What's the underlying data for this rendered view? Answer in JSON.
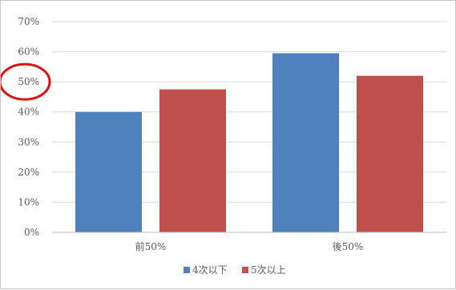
{
  "chart_data": {
    "type": "bar",
    "categories": [
      "前50%",
      "後50%"
    ],
    "series": [
      {
        "name": "4次以下",
        "values": [
          40,
          59.5
        ],
        "color": "#4f81bd"
      },
      {
        "name": "5次以上",
        "values": [
          47.5,
          52
        ],
        "color": "#c0504d"
      }
    ],
    "ylim": [
      0,
      70
    ],
    "yticks": [
      "0%",
      "10%",
      "20%",
      "30%",
      "40%",
      "50%",
      "60%",
      "70%"
    ],
    "grid": true,
    "legend_position": "bottom",
    "annotation": {
      "type": "circle",
      "target": "y-tick-50%",
      "color": "#e01010"
    }
  }
}
